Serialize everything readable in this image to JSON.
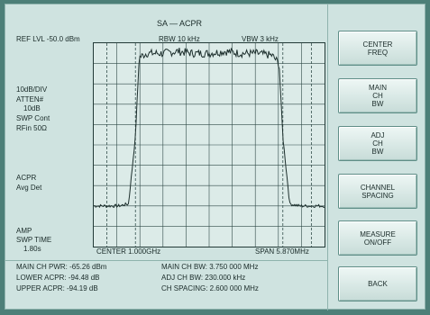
{
  "header": {
    "title": "SA — ACPR",
    "ref_level": "REF LVL -50.0 dBm",
    "rbw": "RBW  10 kHz",
    "vbw": "VBW  3 kHz"
  },
  "left_panel": {
    "scale": "10dB/DIV",
    "atten_label": "ATTEN#",
    "atten_value": "10dB",
    "swp": "SWP Cont",
    "rfin": "RFin 50Ω",
    "acpr": "ACPR",
    "det": "Avg Det",
    "amp": "AMP",
    "swp_time_label": "SWP TIME",
    "swp_time_value": "1.80s"
  },
  "axis": {
    "center": "CENTER  1.000GHz",
    "span": "SPAN  5.870MHz"
  },
  "results": {
    "main_ch_pwr": "MAIN CH PWR: -65.26 dBm",
    "lower_acpr": "LOWER ACPR: -94.48 dB",
    "upper_acpr": "UPPER ACPR: -94.19 dB",
    "main_ch_bw": "MAIN CH BW:   3.750 000 MHz",
    "adj_ch_bw": "ADJ CH BW:  230.000 kHz",
    "ch_spacing": "CH SPACING:   2.600 000 MHz"
  },
  "softkeys": [
    {
      "label": "CENTER\nFREQ"
    },
    {
      "label": "MAIN\nCH\nBW"
    },
    {
      "label": "ADJ\nCH\nBW"
    },
    {
      "label": "CHANNEL\nSPACING"
    },
    {
      "label": "MEASURE\nON/OFF"
    },
    {
      "label": "BACK"
    }
  ],
  "colors": {
    "screen_bg": "#cfe3e0",
    "trace": "#1d2f2d",
    "grid": "#2f4a47",
    "bezel": "#4d7f78"
  },
  "chart_data": {
    "type": "line",
    "title": "",
    "xlabel": "",
    "ylabel": "",
    "x": [
      -2.935,
      -2.3,
      -2.05,
      -1.875,
      -1.78,
      -1.6,
      -1.2,
      -0.8,
      -0.4,
      0.0,
      0.4,
      0.8,
      1.2,
      1.6,
      1.78,
      1.875,
      2.05,
      2.3,
      2.935
    ],
    "y": [
      -130,
      -130,
      -129,
      -96,
      -57,
      -55,
      -55,
      -54,
      -55,
      -55,
      -54,
      -55,
      -55,
      -56,
      -60,
      -96,
      -129,
      -130,
      -130
    ],
    "xlim": [
      -2.935,
      2.935
    ],
    "ylim": [
      -150,
      -50
    ],
    "grid": true
  }
}
